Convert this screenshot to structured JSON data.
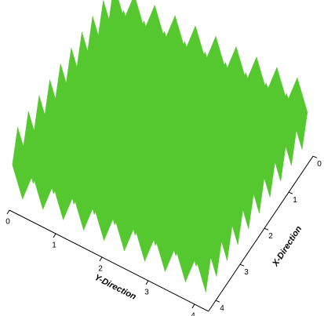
{
  "chart_data": {
    "type": "surface",
    "xlabel": "X-Direction",
    "ylabel": "Y-Direction",
    "xticks": [
      0,
      1,
      2,
      3,
      4
    ],
    "yticks": [
      0,
      1,
      2,
      3,
      4
    ],
    "xlim": [
      0,
      4.3
    ],
    "ylim": [
      0,
      4.3
    ],
    "zlim": [
      -1,
      1
    ],
    "colormap": [
      "#1030c0",
      "#10b0c8",
      "#10c040",
      "#9ad020",
      "#e0c020",
      "#d03010"
    ],
    "x": [
      0,
      0.22,
      0.44,
      0.66,
      0.88,
      1.1,
      1.32,
      1.54,
      1.76,
      1.98,
      2.2,
      2.42,
      2.64,
      2.86,
      3.08,
      3.3,
      3.52,
      3.74,
      3.96,
      4.18
    ],
    "y": [
      0,
      0.22,
      0.44,
      0.66,
      0.88,
      1.1,
      1.32,
      1.54,
      1.76,
      1.98,
      2.2,
      2.42,
      2.64,
      2.86,
      3.08,
      3.3,
      3.52,
      3.74,
      3.96,
      4.18
    ],
    "z": [
      [
        1,
        0,
        1,
        0,
        1,
        0,
        1,
        0,
        1,
        0,
        1,
        0,
        1,
        0,
        1,
        0,
        1,
        0,
        1,
        0
      ],
      [
        0,
        -1,
        0,
        -1,
        0,
        -1,
        0,
        -1,
        0,
        -1,
        0,
        -1,
        0,
        -1,
        0,
        -1,
        0,
        -1,
        0,
        -1
      ],
      [
        1,
        0,
        1,
        0,
        1,
        0,
        1,
        0,
        1,
        0,
        1,
        0,
        1,
        0,
        1,
        0,
        1,
        0,
        1,
        0
      ],
      [
        0,
        -1,
        0,
        -1,
        0,
        -1,
        0,
        -1,
        0,
        -1,
        0,
        -1,
        0,
        -1,
        0,
        -1,
        0,
        -1,
        0,
        -1
      ],
      [
        1,
        0,
        1,
        0,
        1,
        0,
        1,
        0,
        1,
        0,
        1,
        0,
        1,
        0,
        1,
        0,
        1,
        0,
        1,
        0
      ],
      [
        0,
        -1,
        0,
        -1,
        0,
        -1,
        0,
        -1,
        0,
        -1,
        0,
        -1,
        0,
        -1,
        0,
        -1,
        0,
        -1,
        0,
        -1
      ],
      [
        1,
        0,
        1,
        0,
        1,
        0,
        1,
        0,
        1,
        0,
        1,
        0,
        1,
        0,
        1,
        0,
        1,
        0,
        1,
        0
      ],
      [
        0,
        -1,
        0,
        -1,
        0,
        -1,
        0,
        -1,
        0,
        -1,
        0,
        -1,
        0,
        -1,
        0,
        -1,
        0,
        -1,
        0,
        -1
      ],
      [
        1,
        0,
        1,
        0,
        1,
        0,
        1,
        0,
        1,
        0,
        1,
        0,
        1,
        0,
        1,
        0,
        1,
        0,
        1,
        0
      ],
      [
        0,
        -1,
        0,
        -1,
        0,
        -1,
        0,
        -1,
        0,
        -1,
        0,
        -1,
        0,
        -1,
        0,
        -1,
        0,
        -1,
        0,
        -1
      ],
      [
        1,
        0,
        1,
        0,
        1,
        0,
        1,
        0,
        1,
        0,
        1,
        0,
        1,
        0,
        1,
        0,
        1,
        0,
        1,
        0
      ],
      [
        0,
        -1,
        0,
        -1,
        0,
        -1,
        0,
        -1,
        0,
        -1,
        0,
        -1,
        0,
        -1,
        0,
        -1,
        0,
        -1,
        0,
        -1
      ],
      [
        1,
        0,
        1,
        0,
        1,
        0,
        1,
        0,
        1,
        0,
        1,
        0,
        1,
        0,
        1,
        0,
        1,
        0,
        1,
        0
      ],
      [
        0,
        -1,
        0,
        -1,
        0,
        -1,
        0,
        -1,
        0,
        -1,
        0,
        -1,
        0,
        -1,
        0,
        -1,
        0,
        -1,
        0,
        -1
      ],
      [
        1,
        0,
        1,
        0,
        1,
        0,
        1,
        0,
        1,
        0,
        1,
        0,
        1,
        0,
        1,
        0,
        1,
        0,
        1,
        0
      ],
      [
        0,
        -1,
        0,
        -1,
        0,
        -1,
        0,
        -1,
        0,
        -1,
        0,
        -1,
        0,
        -1,
        0,
        -1,
        0,
        -1,
        0,
        -1
      ],
      [
        1,
        0,
        1,
        0,
        1,
        0,
        1,
        0,
        1,
        0,
        1,
        0,
        1,
        0,
        1,
        0,
        1,
        0,
        1,
        0
      ],
      [
        0,
        -1,
        0,
        -1,
        0,
        -1,
        0,
        -1,
        0,
        -1,
        0,
        -1,
        0,
        -1,
        0,
        -1,
        0,
        -1,
        0,
        -1
      ],
      [
        1,
        0,
        1,
        0,
        1,
        0,
        1,
        0,
        1,
        0,
        1,
        0,
        1,
        0,
        1,
        0,
        1,
        0,
        1,
        0
      ],
      [
        0,
        -1,
        0,
        -1,
        0,
        -1,
        0,
        -1,
        0,
        -1,
        0,
        -1,
        0,
        -1,
        0,
        -1,
        0,
        -1,
        0,
        -1
      ]
    ]
  }
}
